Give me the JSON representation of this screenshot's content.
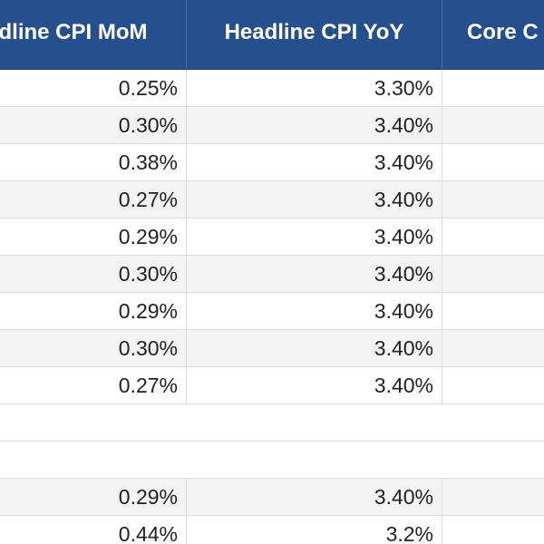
{
  "header": {
    "col1": "dline CPI MoM",
    "col2": "Headline CPI YoY",
    "col3": "Core C"
  },
  "rows": [
    {
      "mom": "0.25%",
      "yoy": "3.30%",
      "core": ""
    },
    {
      "mom": "0.30%",
      "yoy": "3.40%",
      "core": ""
    },
    {
      "mom": "0.38%",
      "yoy": "3.40%",
      "core": ""
    },
    {
      "mom": "0.27%",
      "yoy": "3.40%",
      "core": ""
    },
    {
      "mom": "0.29%",
      "yoy": "3.40%",
      "core": ""
    },
    {
      "mom": "0.30%",
      "yoy": "3.40%",
      "core": ""
    },
    {
      "mom": "0.29%",
      "yoy": "3.40%",
      "core": ""
    },
    {
      "mom": "0.30%",
      "yoy": "3.40%",
      "core": ""
    },
    {
      "mom": "0.27%",
      "yoy": "3.40%",
      "core": ""
    },
    {
      "mom": "",
      "yoy": "",
      "core": ""
    },
    {
      "mom": "",
      "yoy": "",
      "core": ""
    },
    {
      "mom": "0.29%",
      "yoy": "3.40%",
      "core": ""
    },
    {
      "mom": "0.44%",
      "yoy": "3.2%",
      "core": ""
    }
  ],
  "colors": {
    "header_bg": "#264f8e",
    "header_text": "#ffffff",
    "alt_row": "#f3f3f3",
    "grid": "#dcdcdc"
  }
}
